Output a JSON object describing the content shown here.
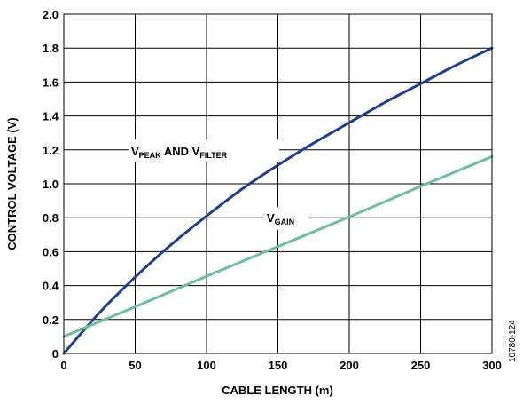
{
  "chart_data": {
    "type": "line",
    "xlabel": "CABLE LENGTH (m)",
    "ylabel": "CONTROL VOLTAGE (V)",
    "xlim": [
      0,
      300
    ],
    "ylim": [
      0,
      2.0
    ],
    "x_ticks": [
      "0",
      "50",
      "100",
      "150",
      "200",
      "250",
      "300"
    ],
    "y_ticks": [
      "0",
      "0.2",
      "0.4",
      "0.6",
      "0.8",
      "1.0",
      "1.2",
      "1.4",
      "1.6",
      "1.8",
      "2.0"
    ],
    "grid": true,
    "series": [
      {
        "color": "#1f3f8c",
        "label_main": "V",
        "label_sub1": "PEAK",
        "label_and": " AND V",
        "label_sub2": "FILTER",
        "x": [
          0,
          25,
          50,
          75,
          100,
          125,
          150,
          175,
          200,
          225,
          250,
          275,
          300
        ],
        "y": [
          0.0,
          0.24,
          0.45,
          0.64,
          0.81,
          0.97,
          1.11,
          1.24,
          1.36,
          1.48,
          1.59,
          1.7,
          1.8
        ]
      },
      {
        "color": "#6dbf98",
        "label_main": "V",
        "label_sub1": "GAIN",
        "x": [
          0,
          50,
          100,
          150,
          200,
          250,
          300
        ],
        "y": [
          0.1,
          0.275,
          0.455,
          0.63,
          0.805,
          0.985,
          1.16
        ]
      }
    ]
  },
  "figure_id": "10780-124"
}
